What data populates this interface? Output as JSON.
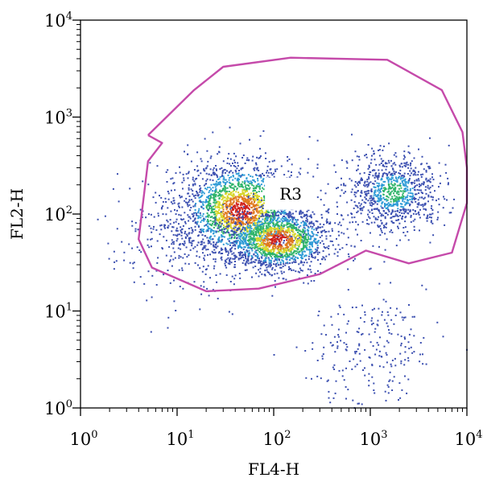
{
  "chart_data": {
    "type": "scatter",
    "subtype": "flow-cytometry-density-dot-plot",
    "xlabel": "FL4-H",
    "ylabel": "FL2-H",
    "xscale": "log",
    "yscale": "log",
    "xlim": [
      1,
      10000
    ],
    "ylim": [
      1,
      10000
    ],
    "x_ticks": [
      {
        "value": 1,
        "base": "10",
        "exp": "0"
      },
      {
        "value": 10,
        "base": "10",
        "exp": "1"
      },
      {
        "value": 100,
        "base": "10",
        "exp": "2"
      },
      {
        "value": 1000,
        "base": "10",
        "exp": "3"
      },
      {
        "value": 10000,
        "base": "10",
        "exp": "4"
      }
    ],
    "y_ticks": [
      {
        "value": 1,
        "base": "10",
        "exp": "0"
      },
      {
        "value": 10,
        "base": "10",
        "exp": "1"
      },
      {
        "value": 100,
        "base": "10",
        "exp": "2"
      },
      {
        "value": 1000,
        "base": "10",
        "exp": "3"
      },
      {
        "value": 10000,
        "base": "10",
        "exp": "4"
      }
    ],
    "grid": false,
    "density_colors": [
      "#3b4fb0",
      "#2e9bd6",
      "#2fb46a",
      "#d8d62a",
      "#e07a1f",
      "#d0221c"
    ],
    "clusters": [
      {
        "center": [
          45,
          110
        ],
        "spread": [
          0.32,
          0.26
        ],
        "count": 2200,
        "hot": true
      },
      {
        "center": [
          110,
          55
        ],
        "spread": [
          0.28,
          0.16
        ],
        "count": 1400,
        "hot": true
      },
      {
        "center": [
          1700,
          170
        ],
        "spread": [
          0.24,
          0.2
        ],
        "count": 900,
        "hot": false
      },
      {
        "center": [
          10,
          50
        ],
        "spread": [
          0.35,
          0.3
        ],
        "count": 220,
        "hot": false
      },
      {
        "center": [
          900,
          4
        ],
        "spread": [
          0.35,
          0.3
        ],
        "count": 230,
        "hot": false
      }
    ],
    "gate": {
      "name": "R3",
      "color": "#c54aaa",
      "label_position": [
        150,
        150
      ],
      "vertices": [
        [
          5,
          650
        ],
        [
          7,
          540
        ],
        [
          5,
          350
        ],
        [
          4,
          55
        ],
        [
          5.5,
          28
        ],
        [
          20,
          16
        ],
        [
          70,
          17
        ],
        [
          300,
          24
        ],
        [
          900,
          42
        ],
        [
          2500,
          31
        ],
        [
          7000,
          40
        ],
        [
          10000,
          130
        ],
        [
          10000,
          300
        ],
        [
          9000,
          700
        ],
        [
          5500,
          1900
        ],
        [
          1500,
          3900
        ],
        [
          150,
          4100
        ],
        [
          30,
          3300
        ],
        [
          15,
          1900
        ],
        [
          5,
          650
        ]
      ]
    }
  }
}
